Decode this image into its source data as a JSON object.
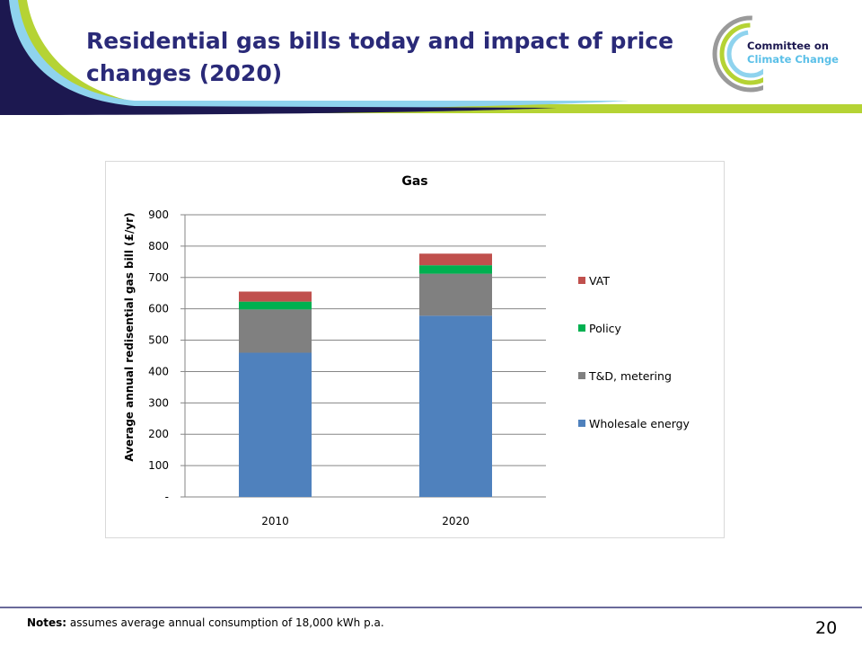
{
  "slide": {
    "title": "Residential gas bills today and impact of price changes (2020)",
    "notes_label": "Notes:",
    "notes_text": " assumes average annual consumption of 18,000 kWh p.a.",
    "page_number": "20"
  },
  "logo": {
    "line1": "Committee on",
    "line2": "Climate Change"
  },
  "colors": {
    "title": "#2a2a78",
    "wholesale": "#4f81bd",
    "td": "#808080",
    "policy": "#00b050",
    "vat": "#c0504d",
    "banner_navy": "#1c1850",
    "banner_green": "#b5d334",
    "banner_cyan": "#8fd3ee"
  },
  "chart_data": {
    "type": "bar",
    "stacked": true,
    "title": "Gas",
    "xlabel": "",
    "ylabel": "Average annual redisential gas bill (£/yr)",
    "categories": [
      "2010",
      "2020"
    ],
    "ylim": [
      0,
      900
    ],
    "yticks": [
      0,
      100,
      200,
      300,
      400,
      500,
      600,
      700,
      800,
      900
    ],
    "ytick_labels": [
      "-",
      "100",
      "200",
      "300",
      "400",
      "500",
      "600",
      "700",
      "800",
      "900"
    ],
    "grid": true,
    "legend_position": "right",
    "series": [
      {
        "name": "Wholesale energy",
        "color": "#4f81bd",
        "values": [
          460,
          578
        ]
      },
      {
        "name": "T&D, metering",
        "color": "#808080",
        "values": [
          138,
          134
        ]
      },
      {
        "name": "Policy",
        "color": "#00b050",
        "values": [
          25,
          27
        ]
      },
      {
        "name": "VAT",
        "color": "#c0504d",
        "values": [
          32,
          37
        ]
      }
    ]
  }
}
